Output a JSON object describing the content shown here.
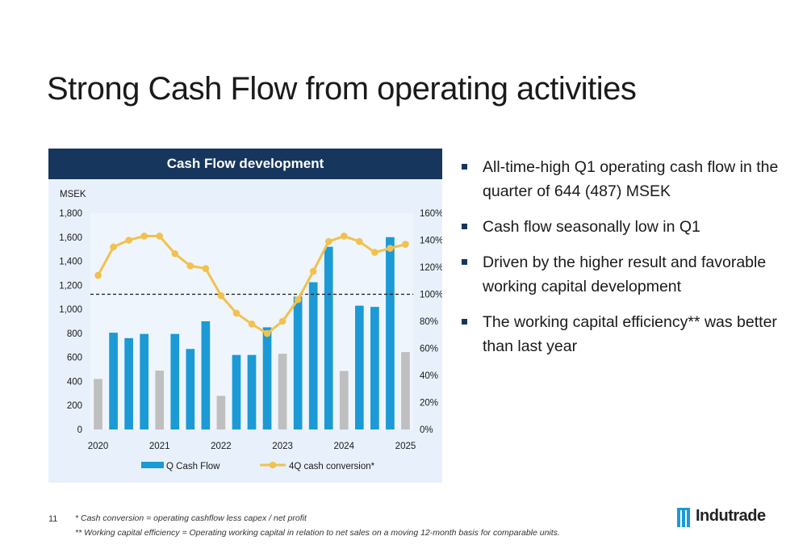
{
  "slide": {
    "title": "Strong Cash Flow from operating activities",
    "page_number": "11",
    "footnote_1": "* Cash conversion = operating cashflow less capex / net profit",
    "footnote_2": "** Working capital efficiency = Operating working capital in relation to net sales on a moving 12-month basis for comparable units.",
    "logo_text": "Indutrade",
    "bullets": [
      "All-time-high Q1 operating cash flow in the quarter of 644 (487) MSEK",
      "Cash flow seasonally low in Q1",
      "Driven by the higher result and favorable working capital development",
      "The working capital efficiency** was better than last year"
    ],
    "colors": {
      "header": "#17365d",
      "bar": "#1b9ad6",
      "bar_q1": "#bfbfbf",
      "line": "#f2c14e",
      "panel": "#e8f1fb"
    }
  },
  "chart_data": {
    "type": "bar",
    "title": "Cash Flow development",
    "y_unit_label": "MSEK",
    "ylim": [
      0,
      1800
    ],
    "y_ticks": [
      "0",
      "200",
      "400",
      "600",
      "800",
      "1,000",
      "1,200",
      "1,400",
      "1,600",
      "1,800"
    ],
    "y2lim": [
      0,
      160
    ],
    "y2_ticks": [
      "0%",
      "20%",
      "40%",
      "60%",
      "80%",
      "100%",
      "120%",
      "140%",
      "160%"
    ],
    "reference_line_y2": 100,
    "x_labels": [
      "2020",
      "2021",
      "2022",
      "2023",
      "2024",
      "2025"
    ],
    "quarters": [
      "2020 Q1",
      "2020 Q2",
      "2020 Q3",
      "2020 Q4",
      "2021 Q1",
      "2021 Q2",
      "2021 Q3",
      "2021 Q4",
      "2022 Q1",
      "2022 Q2",
      "2022 Q3",
      "2022 Q4",
      "2023 Q1",
      "2023 Q2",
      "2023 Q3",
      "2023 Q4",
      "2024 Q1",
      "2024 Q2",
      "2024 Q3",
      "2024 Q4",
      "2025 Q1"
    ],
    "series": [
      {
        "name": "Q Cash Flow",
        "kind": "bar",
        "values": [
          420,
          805,
          760,
          795,
          490,
          795,
          670,
          900,
          280,
          620,
          620,
          850,
          630,
          1105,
          1225,
          1520,
          487,
          1030,
          1020,
          1600,
          644
        ]
      },
      {
        "name": "4Q cash conversion*",
        "kind": "line",
        "axis": "y2",
        "values": [
          114,
          135,
          140,
          143,
          143,
          130,
          121,
          119,
          99,
          86,
          78,
          71,
          80,
          96,
          117,
          139,
          143,
          139,
          131,
          134,
          137
        ]
      }
    ],
    "legend": "bottom"
  }
}
